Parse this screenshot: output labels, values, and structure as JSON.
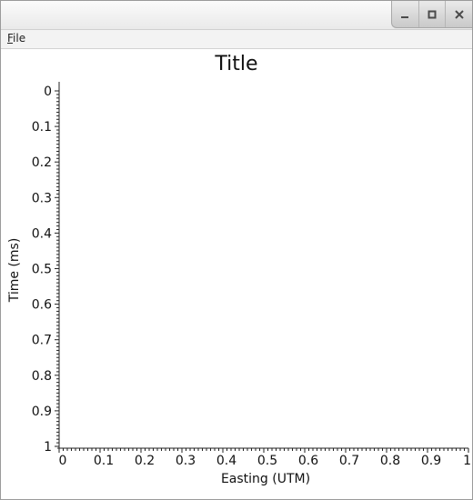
{
  "menu": {
    "file_label": "File"
  },
  "window_buttons": [
    {
      "name": "minimize-icon"
    },
    {
      "name": "maximize-icon"
    },
    {
      "name": "close-icon"
    }
  ],
  "chart_data": {
    "type": "scatter",
    "title": "Title",
    "xlabel": "Easting (UTM)",
    "ylabel": "Time (ms)",
    "xlim": [
      0,
      1
    ],
    "ylim": [
      0,
      1
    ],
    "y_inverted": true,
    "x_ticks": [
      "0",
      "0.1",
      "0.2",
      "0.3",
      "0.4",
      "0.5",
      "0.6",
      "0.7",
      "0.8",
      "0.9",
      "1"
    ],
    "y_ticks": [
      "0",
      "0.1",
      "0.2",
      "0.3",
      "0.4",
      "0.5",
      "0.6",
      "0.7",
      "0.8",
      "0.9",
      "1"
    ],
    "series": [],
    "grid": false
  }
}
